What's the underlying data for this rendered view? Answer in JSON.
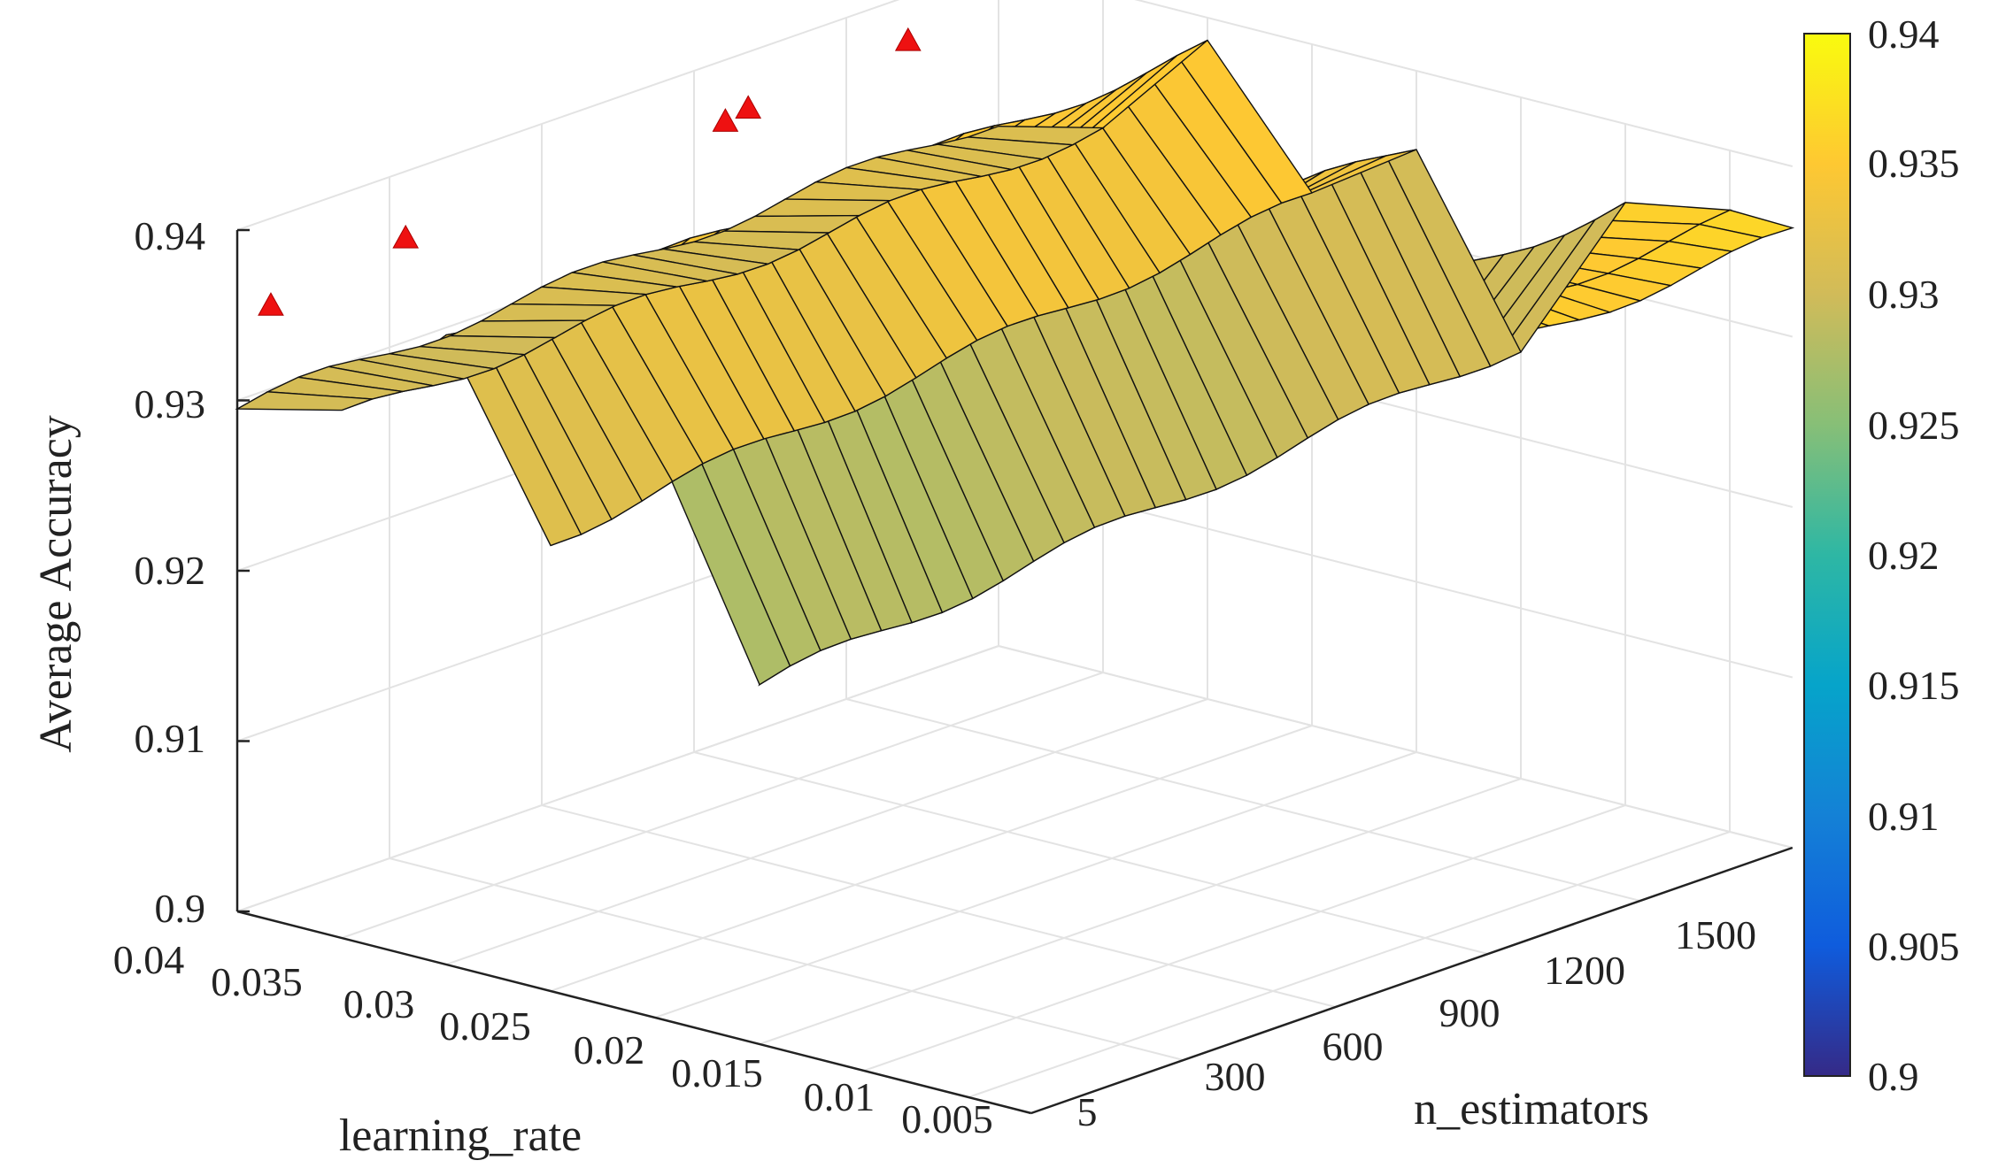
{
  "chart_data": {
    "type": "surface3d",
    "zlabel": "Average Accuracy",
    "xlabel": "learning_rate",
    "ylabel": "n_estimators",
    "zlim": [
      0.9,
      0.94
    ],
    "z_ticks": [
      "0.9",
      "0.91",
      "0.92",
      "0.93",
      "0.94"
    ],
    "learning_rate_ticks": [
      "0.04",
      "0.035",
      "0.03",
      "0.025",
      "0.02",
      "0.015",
      "0.01",
      "0.005"
    ],
    "n_estimators_ticks": [
      "5",
      "300",
      "600",
      "900",
      "1200",
      "1500"
    ],
    "colorbar": {
      "ticks": [
        "0.9",
        "0.905",
        "0.91",
        "0.915",
        "0.92",
        "0.925",
        "0.93",
        "0.935",
        "0.94"
      ],
      "range": [
        0.9,
        0.94
      ],
      "colormap": "parula"
    },
    "series": [
      {
        "learning_rate": 0.04,
        "accuracy": 0.9295
      },
      {
        "learning_rate": 0.035,
        "accuracy": 0.9305
      },
      {
        "learning_rate": 0.03,
        "accuracy": 0.9367
      },
      {
        "learning_rate": 0.025,
        "accuracy": 0.9265
      },
      {
        "learning_rate": 0.02,
        "accuracy": 0.9342
      },
      {
        "learning_rate": 0.015,
        "accuracy": 0.921
      },
      {
        "learning_rate": 0.01,
        "accuracy": 0.9338
      },
      {
        "learning_rate": 0.005,
        "accuracy": 0.9345
      }
    ],
    "peak_markers": [
      {
        "n_estimators": 5,
        "accuracy": 0.936
      },
      {
        "n_estimators": 300,
        "accuracy": 0.9372
      },
      {
        "n_estimators": 1000,
        "accuracy": 0.9375
      },
      {
        "n_estimators": 1050,
        "accuracy": 0.9378
      },
      {
        "n_estimators": 1400,
        "accuracy": 0.9385
      }
    ]
  }
}
